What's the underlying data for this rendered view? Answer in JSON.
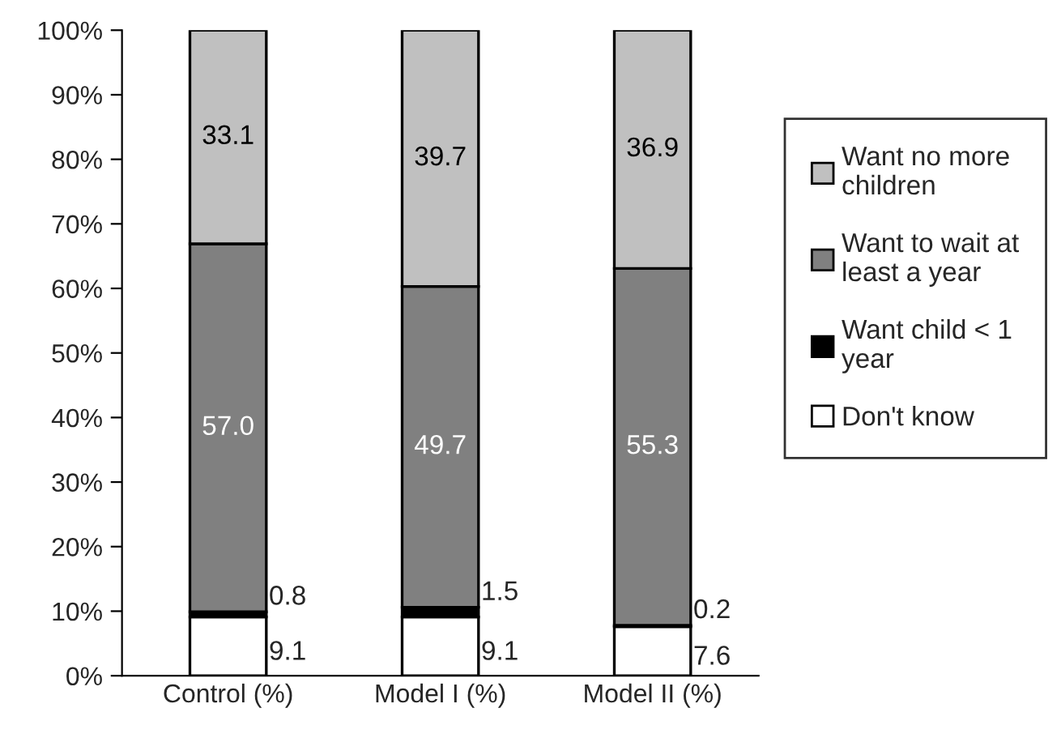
{
  "chart_data": {
    "type": "bar",
    "stacked": true,
    "categories": [
      "Control (%)",
      "Model I (%)",
      "Model II (%)"
    ],
    "series": [
      {
        "name": "Don't know",
        "color": "#ffffff",
        "values": [
          9.1,
          9.1,
          7.6
        ],
        "value_labels": [
          "9.1",
          "9.1",
          "7.6"
        ]
      },
      {
        "name": "Want child < 1 year",
        "color": "#000000",
        "values": [
          0.8,
          1.5,
          0.2
        ],
        "value_labels": [
          "0.8",
          "1.5",
          "0.2"
        ]
      },
      {
        "name": "Want to wait at least a year",
        "color": "#808080",
        "values": [
          57.0,
          49.7,
          55.3
        ],
        "value_labels": [
          "57.0",
          "49.7",
          "55.3"
        ]
      },
      {
        "name": "Want no more children",
        "color": "#c0c0c0",
        "values": [
          33.1,
          39.7,
          36.9
        ],
        "value_labels": [
          "33.1",
          "39.7",
          "36.9"
        ]
      }
    ],
    "ylim": [
      0,
      100
    ],
    "yticks": [
      {
        "value": 0,
        "label": "0%"
      },
      {
        "value": 10,
        "label": "10%"
      },
      {
        "value": 20,
        "label": "20%"
      },
      {
        "value": 30,
        "label": "30%"
      },
      {
        "value": 40,
        "label": "40%"
      },
      {
        "value": 50,
        "label": "50%"
      },
      {
        "value": 60,
        "label": "60%"
      },
      {
        "value": 70,
        "label": "70%"
      },
      {
        "value": 80,
        "label": "80%"
      },
      {
        "value": 90,
        "label": "90%"
      },
      {
        "value": 100,
        "label": "100%"
      }
    ],
    "grid": false,
    "legend": "right"
  }
}
